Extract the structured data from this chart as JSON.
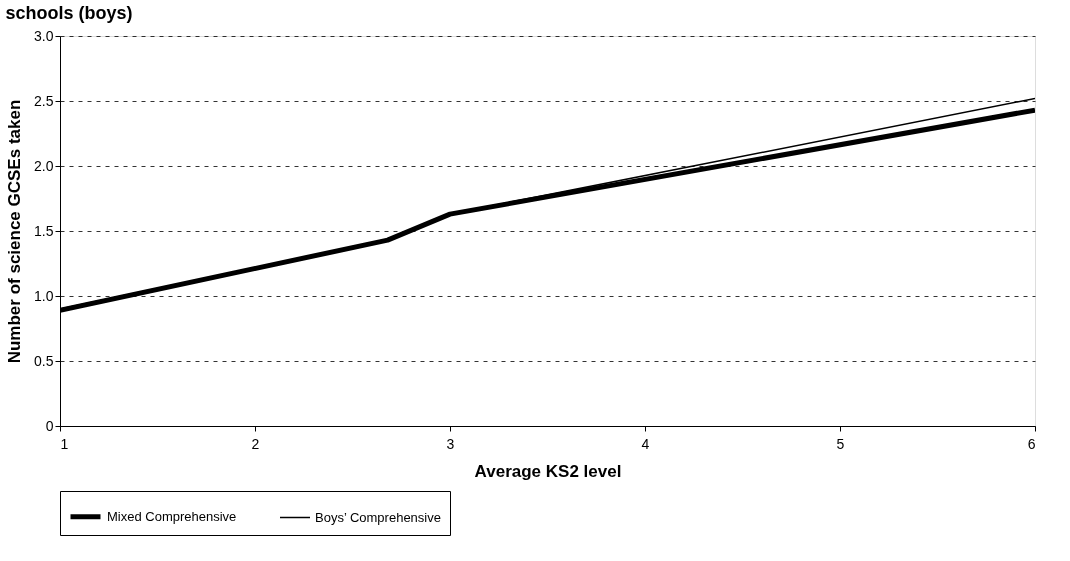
{
  "chart_data": {
    "type": "line",
    "title": "schools (boys)",
    "xlabel": "Average KS2 level",
    "ylabel": "Number of science GCSEs taken",
    "xlim": [
      1,
      6
    ],
    "xticks": [
      1,
      2,
      3,
      4,
      5,
      6
    ],
    "ylim": [
      0,
      3
    ],
    "yticks": [
      {
        "value": 0,
        "label": "0"
      },
      {
        "value": 0.5,
        "label": "0.5"
      },
      {
        "value": 1,
        "label": "1.0"
      },
      {
        "value": 1.5,
        "label": "1.5"
      },
      {
        "value": 2,
        "label": "2.0"
      },
      {
        "value": 2.5,
        "label": "2.5"
      },
      {
        "value": 3,
        "label": "3.0"
      }
    ],
    "grid": "y",
    "legend": "bottom",
    "marker": "none",
    "line_style": "solid",
    "series": [
      {
        "name": "Mixed Comprehensive",
        "color": "#000000",
        "x": [
          1,
          2.68,
          3,
          6
        ],
        "values": [
          0.89,
          1.43,
          1.63,
          2.43
        ]
      },
      {
        "name": "Boys’ Comprehensive",
        "color": "#000000",
        "x": [
          1,
          2.68,
          3,
          6
        ],
        "values": [
          0.9,
          1.43,
          1.63,
          2.52
        ]
      }
    ]
  }
}
